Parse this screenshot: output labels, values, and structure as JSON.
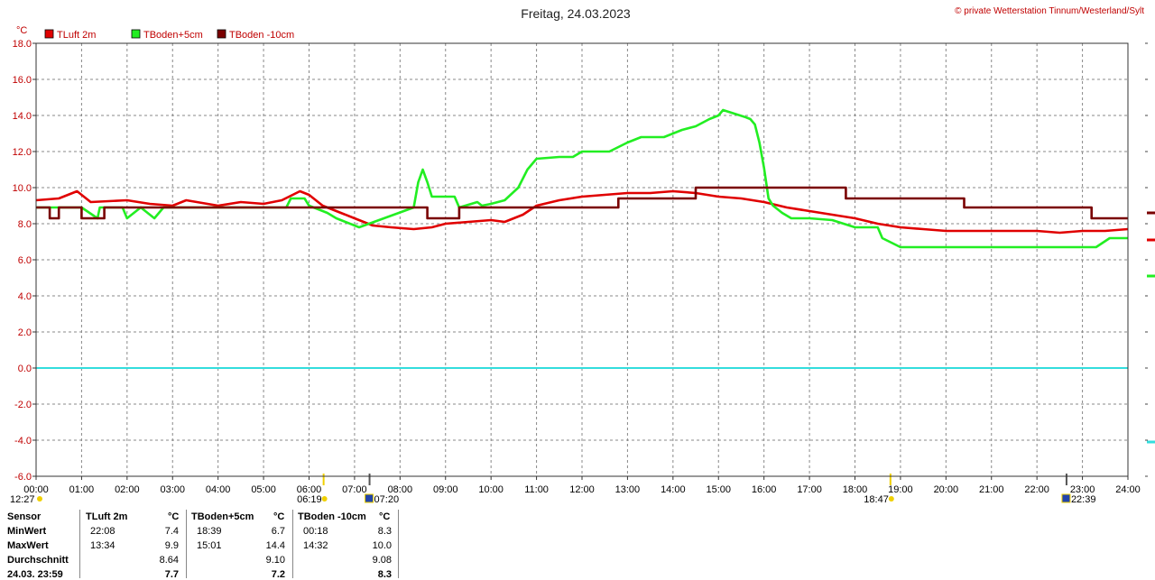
{
  "page": {
    "title": "Freitag, 24.03.2023",
    "copyright": "© private Wetterstation Tinnum/Westerland/Sylt"
  },
  "colors": {
    "tluft": "#e00000",
    "tboden5": "#22ee22",
    "tboden10": "#7a0000",
    "zero_line": "#33dddd",
    "grid": "#888888",
    "axis_text": "#c00000"
  },
  "chart_data": {
    "type": "line",
    "title": "Freitag, 24.03.2023",
    "ylabel": "°C",
    "xlabel": "",
    "ylim": [
      -6,
      18
    ],
    "xlim": [
      0,
      24
    ],
    "grid": true,
    "legend_position": "top-left",
    "y_ticks": [
      "18.0",
      "16.0",
      "14.0",
      "12.0",
      "10.0",
      "8.0",
      "6.0",
      "4.0",
      "2.0",
      "0.0",
      "-2.0",
      "-4.0",
      "-6.0"
    ],
    "x_ticks": [
      "00:00",
      "01:00",
      "02:00",
      "03:00",
      "04:00",
      "05:00",
      "06:00",
      "07:00",
      "08:00",
      "09:00",
      "10:00",
      "11:00",
      "12:00",
      "13:00",
      "14:00",
      "15:00",
      "16:00",
      "17:00",
      "18:00",
      "19:00",
      "20:00",
      "21:00",
      "22:00",
      "23:00",
      "24:00"
    ],
    "series": [
      {
        "name": "TLuft 2m",
        "color": "#e00000",
        "x": [
          0,
          0.5,
          0.9,
          1.2,
          2.0,
          2.5,
          3.0,
          3.3,
          4.0,
          4.5,
          5.0,
          5.4,
          5.8,
          6.0,
          6.3,
          6.6,
          7.0,
          7.4,
          7.8,
          8.3,
          8.7,
          9.0,
          9.5,
          10.0,
          10.3,
          10.7,
          11.0,
          11.5,
          12.0,
          12.5,
          13.0,
          13.5,
          14.0,
          14.5,
          15.0,
          15.5,
          16.0,
          16.5,
          17.0,
          17.5,
          18.0,
          18.5,
          19.0,
          19.5,
          20.0,
          20.5,
          21.0,
          21.5,
          22.0,
          22.5,
          23.0,
          23.5,
          24.0
        ],
        "y": [
          9.3,
          9.4,
          9.8,
          9.2,
          9.3,
          9.1,
          9.0,
          9.3,
          9.0,
          9.2,
          9.1,
          9.3,
          9.8,
          9.6,
          9.0,
          8.7,
          8.3,
          7.9,
          7.8,
          7.7,
          7.8,
          8.0,
          8.1,
          8.2,
          8.1,
          8.5,
          9.0,
          9.3,
          9.5,
          9.6,
          9.7,
          9.7,
          9.8,
          9.7,
          9.5,
          9.4,
          9.2,
          8.9,
          8.7,
          8.5,
          8.3,
          8.0,
          7.8,
          7.7,
          7.6,
          7.6,
          7.6,
          7.6,
          7.6,
          7.5,
          7.6,
          7.6,
          7.7
        ]
      },
      {
        "name": "TBoden+5cm",
        "color": "#22ee22",
        "x": [
          0,
          0.4,
          0.45,
          1.0,
          1.35,
          1.4,
          1.9,
          2.0,
          2.3,
          2.6,
          2.8,
          5.5,
          5.6,
          5.9,
          6.0,
          6.4,
          6.6,
          7.1,
          8.3,
          8.4,
          8.5,
          8.6,
          8.7,
          9.2,
          9.3,
          9.7,
          9.8,
          10.0,
          10.3,
          10.6,
          10.8,
          11.0,
          11.5,
          11.8,
          12.0,
          12.6,
          13.0,
          13.3,
          13.8,
          14.2,
          14.5,
          14.8,
          15.0,
          15.1,
          15.6,
          15.7,
          15.8,
          15.9,
          16.0,
          16.1,
          16.2,
          16.4,
          16.6,
          17.0,
          17.5,
          18.0,
          18.5,
          18.6,
          19.0,
          22.0,
          22.5,
          23.3,
          23.6,
          24.0
        ],
        "y": [
          8.9,
          8.9,
          8.9,
          8.9,
          8.3,
          8.9,
          8.9,
          8.3,
          8.9,
          8.3,
          8.9,
          8.9,
          9.4,
          9.4,
          9.0,
          8.6,
          8.3,
          7.8,
          8.9,
          10.3,
          11.0,
          10.3,
          9.5,
          9.5,
          8.9,
          9.2,
          9.0,
          9.1,
          9.3,
          10.0,
          11.0,
          11.6,
          11.7,
          11.7,
          12.0,
          12.0,
          12.5,
          12.8,
          12.8,
          13.2,
          13.4,
          13.8,
          14.0,
          14.3,
          13.9,
          13.8,
          13.5,
          12.5,
          11.1,
          9.4,
          9.0,
          8.6,
          8.3,
          8.3,
          8.2,
          7.8,
          7.8,
          7.2,
          6.7,
          6.7,
          6.7,
          6.7,
          7.2,
          7.2
        ]
      },
      {
        "name": "TBoden -10cm",
        "color": "#7a0000",
        "x": [
          0,
          0.3,
          0.3,
          0.5,
          0.5,
          1.0,
          1.0,
          1.5,
          1.5,
          8.6,
          8.6,
          9.3,
          9.3,
          12.8,
          12.8,
          14.5,
          14.5,
          17.8,
          17.8,
          20.4,
          20.4,
          23.2,
          23.2,
          24.0
        ],
        "y": [
          8.9,
          8.9,
          8.3,
          8.3,
          8.9,
          8.9,
          8.3,
          8.3,
          8.9,
          8.9,
          8.3,
          8.3,
          8.9,
          8.9,
          9.4,
          9.4,
          10.0,
          10.0,
          9.4,
          9.4,
          8.9,
          8.9,
          8.3,
          8.3
        ]
      },
      {
        "name": "",
        "color": "#33dddd",
        "x": [
          0,
          24
        ],
        "y": [
          0,
          0
        ]
      }
    ]
  },
  "sun_markers": [
    {
      "time": 6.32,
      "label": "06:19",
      "type": "sunrise"
    },
    {
      "time": 7.33,
      "label": "07:20",
      "type": "moonrise"
    },
    {
      "time": 18.78,
      "label": "18:47",
      "type": "sunset"
    },
    {
      "time": 22.65,
      "label": "22:39",
      "type": "moonset"
    }
  ],
  "moon_left": {
    "label": "12:27"
  },
  "stats": {
    "headers": {
      "sensor": "Sensor",
      "tluft": "TLuft 2m",
      "tluft_unit": "°C",
      "tb5": "TBoden+5cm",
      "tb5_unit": "°C",
      "tb10": "TBoden -10cm",
      "tb10_unit": "°C"
    },
    "rows": [
      {
        "label": "MinWert",
        "t1": "22:08",
        "v1": "7.4",
        "t2": "18:39",
        "v2": "6.7",
        "t3": "00:18",
        "v3": "8.3"
      },
      {
        "label": "MaxWert",
        "t1": "13:34",
        "v1": "9.9",
        "t2": "15:01",
        "v2": "14.4",
        "t3": "14:32",
        "v3": "10.0"
      },
      {
        "label": "Durchschnitt",
        "t1": "",
        "v1": "8.64",
        "t2": "",
        "v2": "9.10",
        "t3": "",
        "v3": "9.08"
      },
      {
        "label": "24.03. 23:59",
        "t1": "",
        "v1": "7.7",
        "t2": "",
        "v2": "7.2",
        "t3": "",
        "v3": "8.3"
      }
    ]
  }
}
